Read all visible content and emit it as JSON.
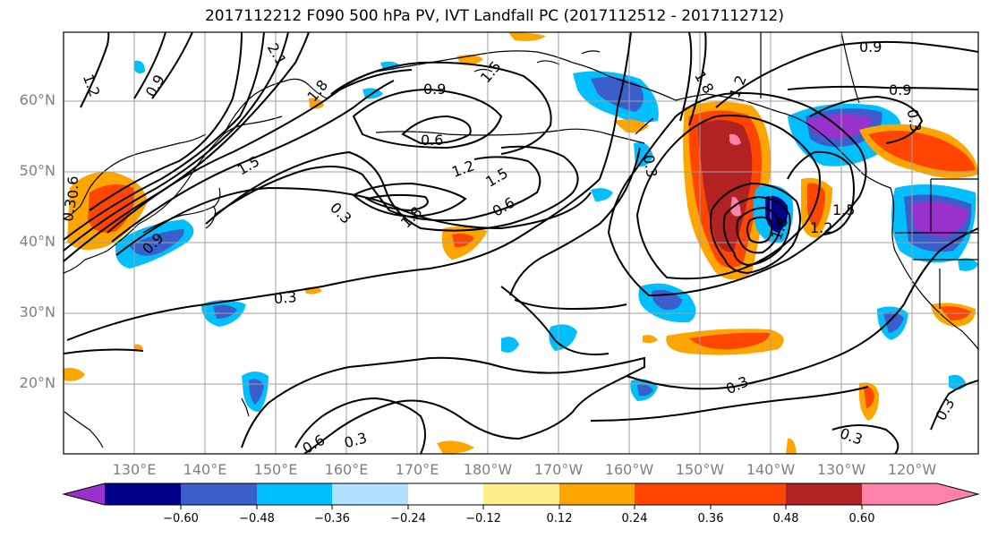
{
  "title": "2017112212 F090 500 hPa PV, IVT Landfall PC (2017112512 - 2017112712)",
  "map": {
    "latitude_labels": [
      "20°N",
      "30°N",
      "40°N",
      "50°N",
      "60°N"
    ],
    "longitude_labels": [
      "130°E",
      "140°E",
      "150°E",
      "160°E",
      "170°E",
      "180°W",
      "170°W",
      "160°W",
      "150°W",
      "140°W",
      "130°W",
      "120°W"
    ],
    "contour_labels": [
      "1.2",
      "0.9",
      "2.1",
      "1.8",
      "1.5",
      "0.9",
      "0.6",
      "1.2",
      "1.5",
      "0.3",
      "1.8",
      "0.6",
      "0.3",
      "1.5",
      "0.9",
      "0.6",
      "0.3",
      "1.8",
      "1.2",
      "0.9",
      "0.3",
      "1.5",
      "1.2",
      "1.8",
      "0.3",
      "0.3",
      "0.3",
      "0.6",
      "0.3",
      "0.3",
      "0.9"
    ],
    "contour_color": "#000000",
    "grid": true,
    "grid_color": "#a0a0a0"
  },
  "colorbar": {
    "tick_labels": [
      "−0.60",
      "−0.48",
      "−0.36",
      "−0.24",
      "−0.12",
      "0.12",
      "0.24",
      "0.36",
      "0.48",
      "0.60"
    ],
    "colors": [
      "#9932cc",
      "#00008b",
      "#3a5fcd",
      "#00bfff",
      "#b0e2ff",
      "#ffffff",
      "#ffec8b",
      "#ffa500",
      "#ff4500",
      "#b22222",
      "#ff82ab"
    ]
  }
}
